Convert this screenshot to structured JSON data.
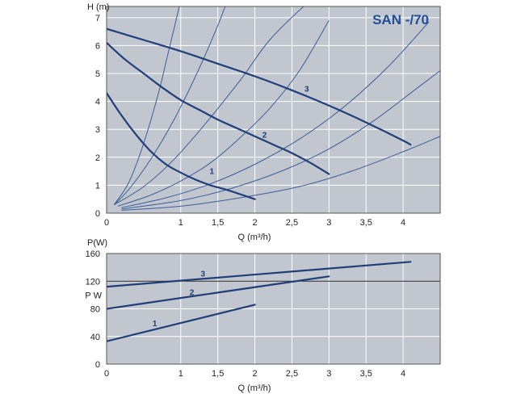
{
  "chart_data": [
    {
      "type": "line",
      "title": "SAN -/70",
      "xlabel": "Q (m³/h)",
      "ylabel": "H (m)",
      "xlim": [
        0,
        4.5
      ],
      "ylim": [
        0,
        7.4
      ],
      "x_ticks": [
        "0",
        "1",
        "1,5",
        "2",
        "2,5",
        "3",
        "3,5",
        "4"
      ],
      "x_tick_values": [
        0,
        1,
        1.5,
        2,
        2.5,
        3,
        3.5,
        4
      ],
      "y_ticks": [
        "0",
        "1",
        "2",
        "3",
        "4",
        "5",
        "6",
        "7"
      ],
      "y_tick_values": [
        0,
        1,
        2,
        3,
        4,
        5,
        6,
        7
      ],
      "grid": true,
      "colors": {
        "plot_bg": "#c2c6ce",
        "grid": "#ffffff",
        "curve": "#1f3f7a",
        "system_curve": "#3a5f9a"
      },
      "series": [
        {
          "name": "1",
          "x": [
            0,
            0.2,
            0.4,
            0.6,
            0.8,
            1.0,
            1.2,
            1.4,
            1.6,
            1.8,
            2.0
          ],
          "y": [
            4.3,
            3.5,
            2.8,
            2.2,
            1.75,
            1.45,
            1.2,
            1.0,
            0.85,
            0.68,
            0.5
          ]
        },
        {
          "name": "2",
          "x": [
            0,
            0.25,
            0.5,
            0.75,
            1.0,
            1.25,
            1.5,
            1.75,
            2.0,
            2.25,
            2.5,
            2.75,
            3.0
          ],
          "y": [
            6.1,
            5.5,
            5.0,
            4.5,
            4.05,
            3.7,
            3.35,
            3.05,
            2.75,
            2.45,
            2.15,
            1.8,
            1.4
          ]
        },
        {
          "name": "3",
          "x": [
            0,
            0.5,
            1.0,
            1.5,
            2.0,
            2.5,
            3.0,
            3.5,
            4.0,
            4.1
          ],
          "y": [
            6.6,
            6.2,
            5.8,
            5.35,
            4.9,
            4.4,
            3.85,
            3.25,
            2.6,
            2.45
          ]
        }
      ],
      "system_curves": [
        {
          "x": [
            0.1,
            0.5,
            0.9,
            1.3,
            1.8,
            2.2,
            2.7,
            3.0
          ],
          "y": [
            0.3,
            0.95,
            1.9,
            3.1,
            4.75,
            6.2,
            7.5,
            8.1
          ]
        },
        {
          "x": [
            0.15,
            0.6,
            1.0,
            1.4,
            1.8,
            2.2,
            2.6,
            3.0
          ],
          "y": [
            0.25,
            0.65,
            1.15,
            1.8,
            2.7,
            3.75,
            5.1,
            6.9
          ]
        },
        {
          "x": [
            0.2,
            0.8,
            1.4,
            2.0,
            2.6,
            3.2,
            3.8,
            4.35
          ],
          "y": [
            0.2,
            0.55,
            1.05,
            1.75,
            2.65,
            3.8,
            5.25,
            6.85
          ]
        },
        {
          "x": [
            0.2,
            1.0,
            1.7,
            2.4,
            3.0,
            3.6,
            4.2,
            4.5
          ],
          "y": [
            0.15,
            0.45,
            0.9,
            1.55,
            2.3,
            3.3,
            4.5,
            5.1
          ]
        },
        {
          "x": [
            0.2,
            1.0,
            1.8,
            2.6,
            3.3,
            4.0,
            4.5
          ],
          "y": [
            0.1,
            0.25,
            0.55,
            0.95,
            1.5,
            2.2,
            2.75
          ]
        },
        {
          "x": [
            0.1,
            0.3,
            0.5,
            0.7,
            0.8,
            0.9,
            0.98
          ],
          "y": [
            0.3,
            1.1,
            2.5,
            4.3,
            5.4,
            6.5,
            7.4
          ]
        },
        {
          "x": [
            0.1,
            0.3,
            0.6,
            0.9,
            1.2,
            1.45,
            1.6
          ],
          "y": [
            0.3,
            0.85,
            1.95,
            3.3,
            4.9,
            6.4,
            7.4
          ]
        }
      ],
      "curve_labels": [
        {
          "text": "1",
          "x": 1.42,
          "y": 1.4
        },
        {
          "text": "2",
          "x": 2.13,
          "y": 2.7
        },
        {
          "text": "3",
          "x": 2.7,
          "y": 4.35
        }
      ]
    },
    {
      "type": "line",
      "title": "",
      "xlabel": "Q (m³/h)",
      "ylabel": "P(W)",
      "y_side_label": "P W",
      "xlim": [
        0,
        4.5
      ],
      "ylim": [
        0,
        160
      ],
      "x_ticks": [
        "0",
        "1",
        "1,5",
        "2",
        "2,5",
        "3",
        "3,5",
        "4"
      ],
      "x_tick_values": [
        0,
        1,
        1.5,
        2,
        2.5,
        3,
        3.5,
        4
      ],
      "y_ticks": [
        "0",
        "40",
        "80",
        "120",
        "160"
      ],
      "y_tick_values": [
        0,
        40,
        80,
        120,
        160
      ],
      "major_gridlines_y": [
        120
      ],
      "grid": true,
      "colors": {
        "plot_bg": "#c2c6ce",
        "grid": "#ffffff",
        "curve": "#1f3f7a"
      },
      "series": [
        {
          "name": "1",
          "x": [
            0,
            2.0
          ],
          "y": [
            33,
            86
          ]
        },
        {
          "name": "2",
          "x": [
            0,
            3.0
          ],
          "y": [
            80,
            127
          ]
        },
        {
          "name": "3",
          "x": [
            0,
            4.1
          ],
          "y": [
            112,
            148
          ]
        }
      ],
      "curve_labels": [
        {
          "text": "1",
          "x": 0.65,
          "y": 55
        },
        {
          "text": "2",
          "x": 1.15,
          "y": 100
        },
        {
          "text": "3",
          "x": 1.3,
          "y": 127
        }
      ]
    }
  ]
}
